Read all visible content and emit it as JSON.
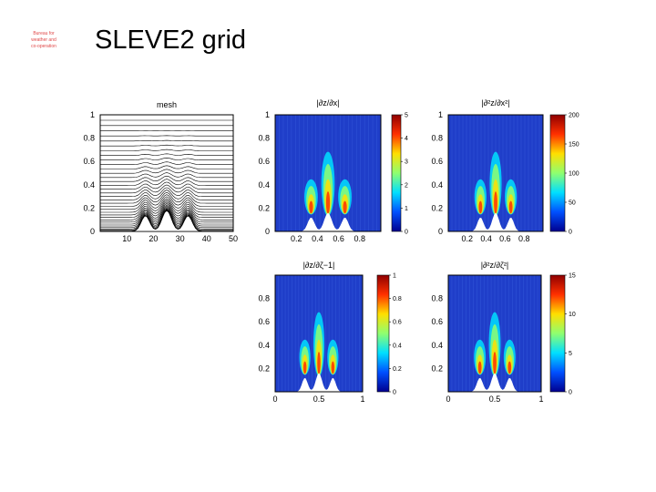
{
  "logo": {
    "lines": [
      "Bureau for",
      "weather and",
      "co-operation"
    ]
  },
  "slide": {
    "title": "SLEVE2 grid"
  },
  "colors": {
    "field_background": "#1f3ec9",
    "colormap": [
      "#00008f",
      "#0050ff",
      "#00dfff",
      "#8fff70",
      "#ffdf00",
      "#ff3000",
      "#8f0000"
    ]
  },
  "panels": [
    {
      "title": "mesh",
      "kind": "mesh",
      "x_ticks": [
        "10",
        "20",
        "30",
        "40",
        "50"
      ],
      "y_ticks": [
        "0",
        "0.2",
        "0.4",
        "0.6",
        "0.8",
        "1"
      ]
    },
    {
      "title": "|∂z/∂x|",
      "kind": "field",
      "x_ticks": [
        "0.2",
        "0.4",
        "0.6",
        "0.8"
      ],
      "y_ticks": [
        "0",
        "0.2",
        "0.4",
        "0.6",
        "0.8",
        "1"
      ],
      "colorbar_ticks": [
        "0",
        "1",
        "2",
        "3",
        "4",
        "5"
      ]
    },
    {
      "title": "|∂²z/∂x²|",
      "kind": "field",
      "x_ticks": [
        "0.2",
        "0.4",
        "0.6",
        "0.8"
      ],
      "y_ticks": [
        "0",
        "0.2",
        "0.4",
        "0.6",
        "0.8",
        "1"
      ],
      "colorbar_ticks": [
        "0",
        "50",
        "100",
        "150",
        "200"
      ]
    },
    {
      "title": "|∂z/∂ζ−1|",
      "kind": "field",
      "x_ticks": [
        "0",
        "0.5",
        "1"
      ],
      "y_ticks": [
        "0.2",
        "0.4",
        "0.6",
        "0.8"
      ],
      "colorbar_ticks": [
        "0",
        "0.2",
        "0.4",
        "0.6",
        "0.8",
        "1"
      ]
    },
    {
      "title": "|∂²z/∂ζ²|",
      "kind": "field",
      "x_ticks": [
        "0",
        "0.5",
        "1"
      ],
      "y_ticks": [
        "0.2",
        "0.4",
        "0.6",
        "0.8"
      ],
      "colorbar_ticks": [
        "0",
        "5",
        "10",
        "15"
      ]
    }
  ]
}
